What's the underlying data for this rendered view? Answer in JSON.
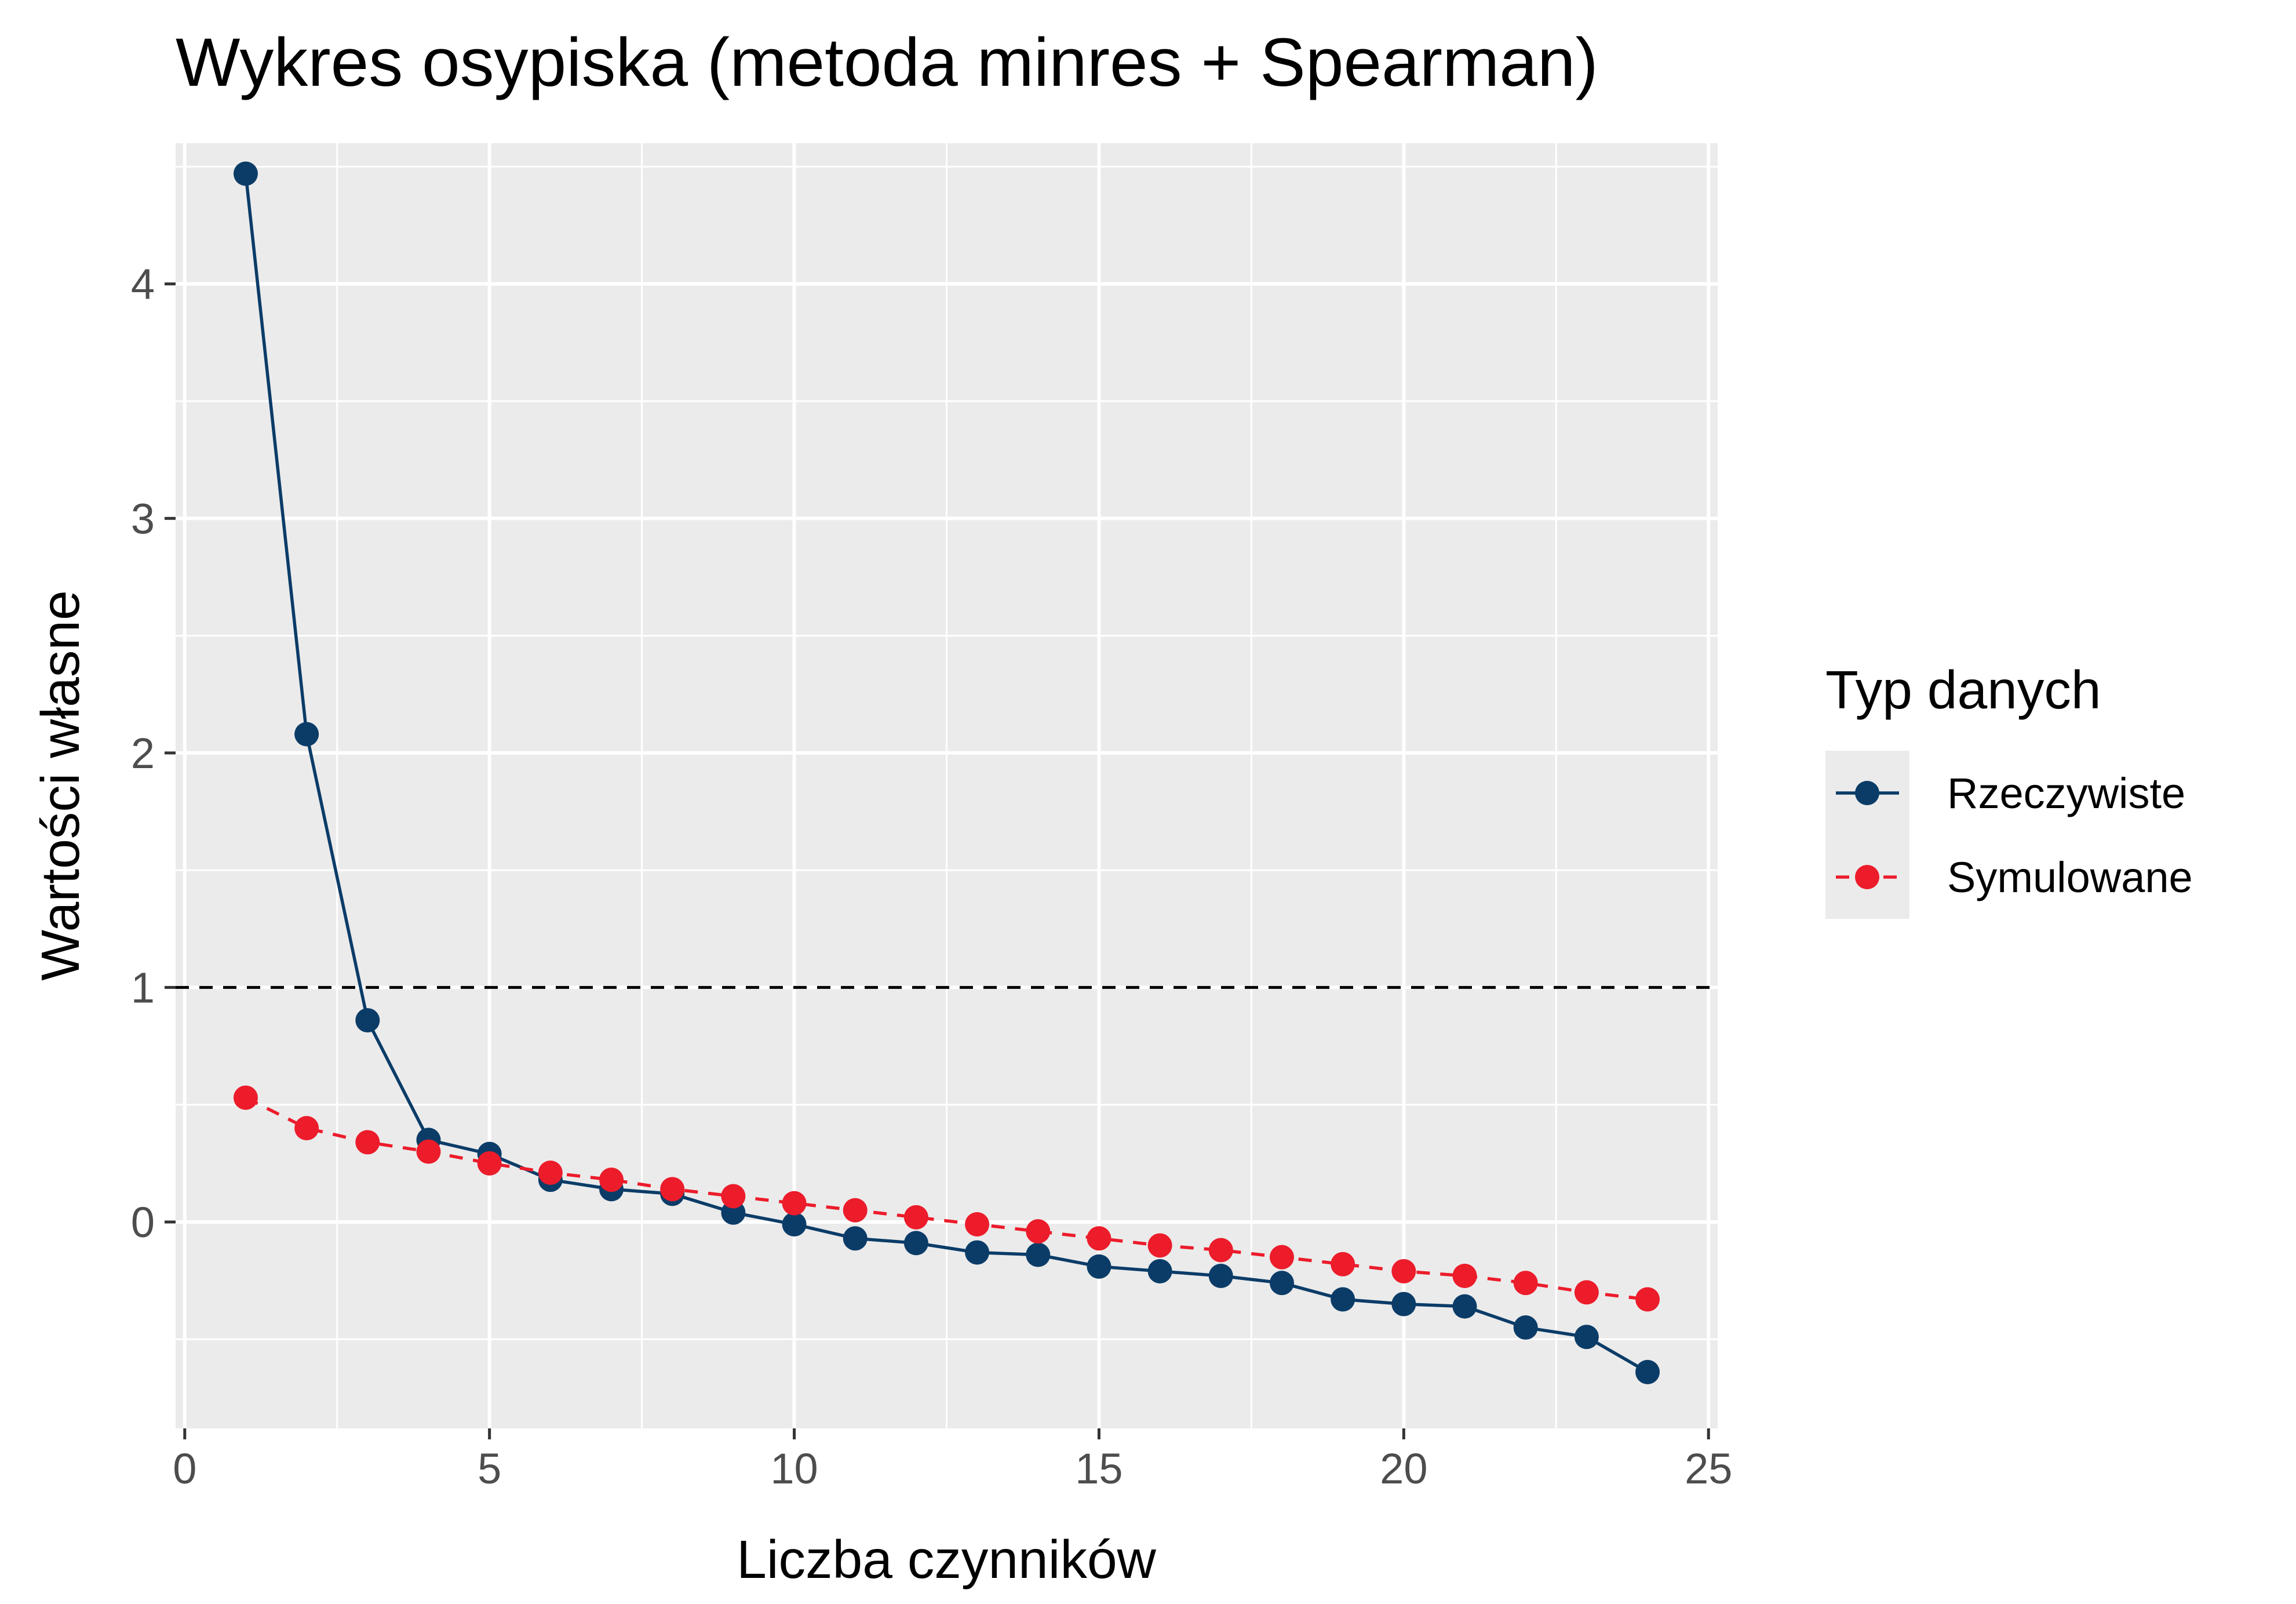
{
  "chart_data": {
    "type": "line",
    "title": "Wykres osypiska (metoda minres + Spearman)",
    "xlabel": "Liczba czynników",
    "ylabel": "Wartości własne",
    "xlim": [
      -0.15,
      25.15
    ],
    "ylim": [
      -0.88,
      4.6
    ],
    "x_ticks": [
      0,
      5,
      10,
      15,
      20,
      25
    ],
    "x_tick_labels": [
      "0",
      "5",
      "10",
      "15",
      "20",
      "25"
    ],
    "y_ticks": [
      0,
      1,
      2,
      3,
      4
    ],
    "y_tick_labels": [
      "0",
      "1",
      "2",
      "3",
      "4"
    ],
    "grid": true,
    "reference_line": {
      "y": 1,
      "style": "dashed",
      "color": "#000000"
    },
    "legend": {
      "title": "Typ danych",
      "position": "right"
    },
    "x": [
      1,
      2,
      3,
      4,
      5,
      6,
      7,
      8,
      9,
      10,
      11,
      12,
      13,
      14,
      15,
      16,
      17,
      18,
      19,
      20,
      21,
      22,
      23,
      24
    ],
    "series": [
      {
        "name": "Rzeczywiste",
        "color": "#0b3c68",
        "line_style": "solid",
        "values": [
          4.47,
          2.08,
          0.86,
          0.35,
          0.29,
          0.18,
          0.14,
          0.12,
          0.04,
          -0.01,
          -0.07,
          -0.09,
          -0.13,
          -0.14,
          -0.19,
          -0.21,
          -0.23,
          -0.26,
          -0.33,
          -0.35,
          -0.36,
          -0.45,
          -0.49,
          -0.64
        ]
      },
      {
        "name": "Symulowane",
        "color": "#ec1c2b",
        "line_style": "dashed",
        "values": [
          0.53,
          0.4,
          0.34,
          0.3,
          0.25,
          0.21,
          0.18,
          0.14,
          0.11,
          0.08,
          0.05,
          0.02,
          -0.01,
          -0.04,
          -0.07,
          -0.1,
          -0.12,
          -0.15,
          -0.18,
          -0.21,
          -0.23,
          -0.26,
          -0.3,
          -0.33
        ]
      }
    ]
  }
}
